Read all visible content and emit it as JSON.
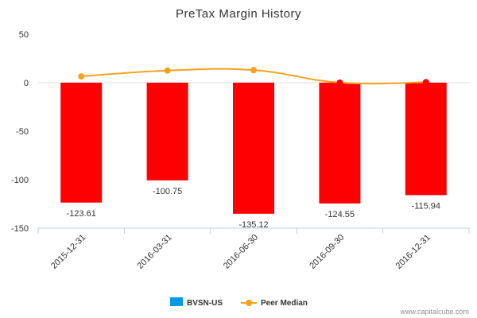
{
  "chart_data": {
    "type": "bar",
    "title": "PreTax Margin History",
    "categories": [
      "2015-12-31",
      "2016-03-31",
      "2016-06-30",
      "2016-09-30",
      "2016-12-31"
    ],
    "series": [
      {
        "name": "BVSN-US",
        "type": "bar",
        "values": [
          -123.61,
          -100.75,
          -135.12,
          -124.55,
          -115.94
        ],
        "data_labels": [
          "-123.61",
          "-100.75",
          "-135.12",
          "-124.55",
          "-115.94"
        ],
        "color": "#ff0000",
        "legend_color": "#0099e6"
      },
      {
        "name": "Peer Median",
        "type": "line",
        "values": [
          6.5,
          12.5,
          13.0,
          0.0,
          0.5
        ],
        "color": "#f7a21b",
        "point_colors": [
          "#f7a21b",
          "#f7a21b",
          "#f7a21b",
          "#ff0000",
          "#ff0000"
        ]
      }
    ],
    "ylim": [
      -150,
      50
    ],
    "yticks": [
      50,
      0,
      -50,
      -100,
      -150
    ],
    "grid": false,
    "legend": "bottom-center"
  },
  "credit": "www.capitalcube.com"
}
